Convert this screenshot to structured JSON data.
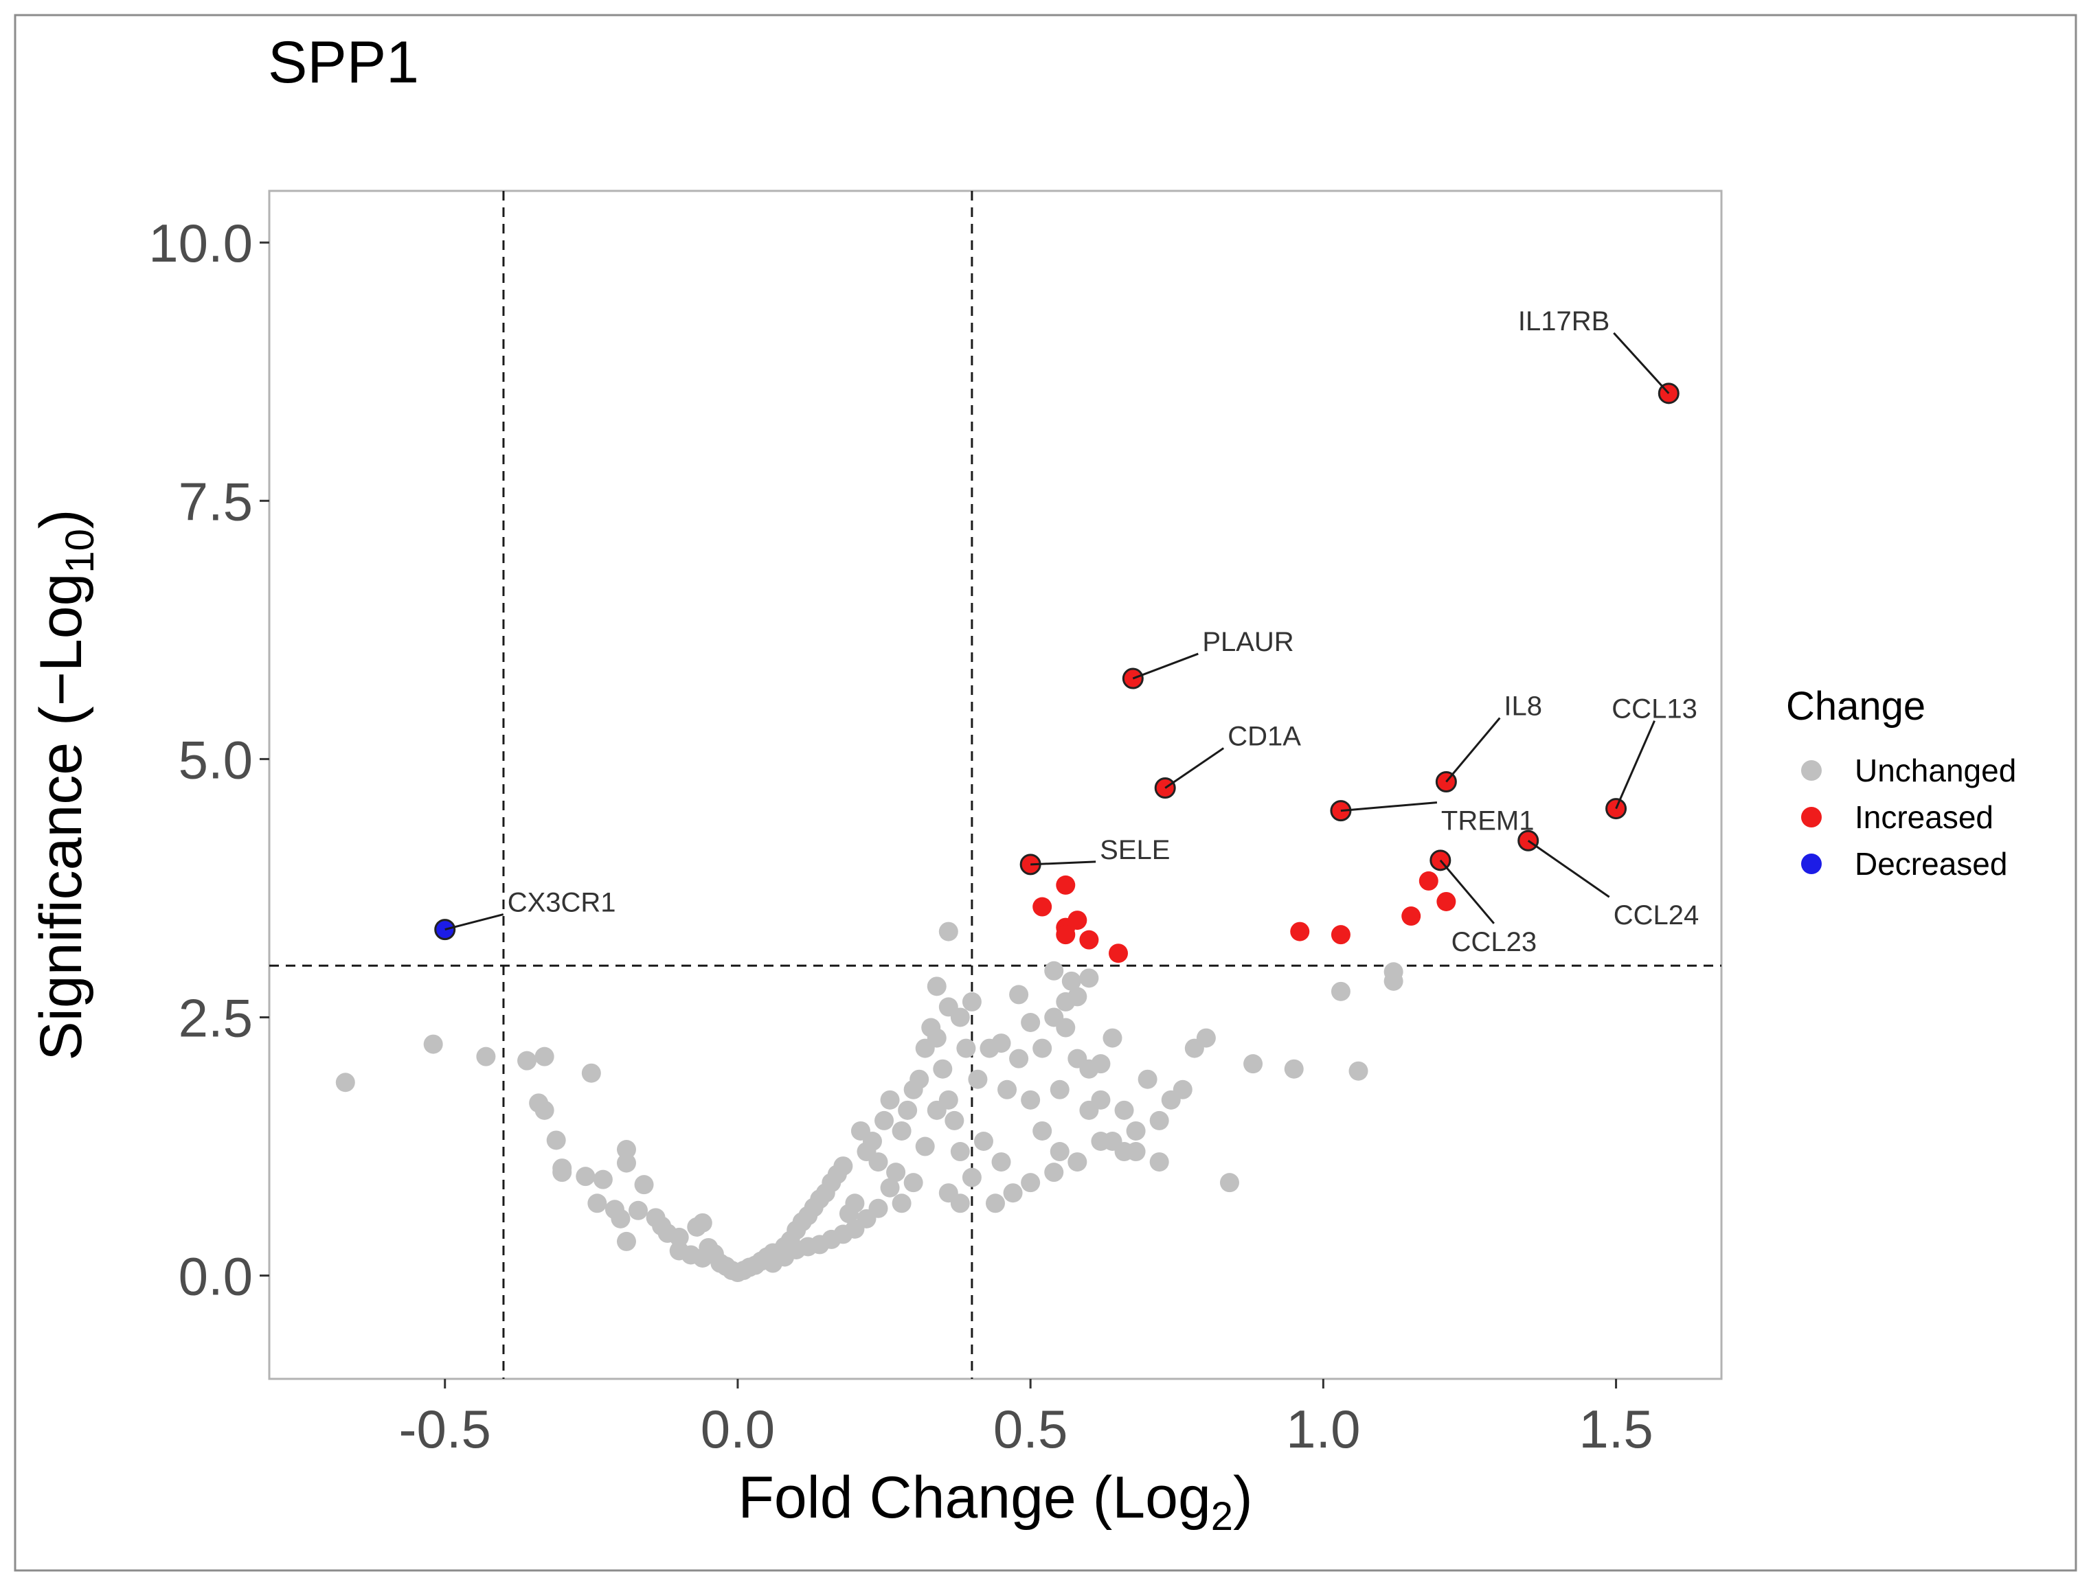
{
  "chart_data": {
    "type": "scatter",
    "title": "SPP1",
    "xlabel": "Fold Change (Log",
    "xlabel_sub": "2",
    "xlabel_end": ")",
    "ylabel": "Significance (−Log",
    "ylabel_sub": "10",
    "ylabel_end": ")",
    "xlim": [
      -0.8,
      1.68
    ],
    "ylim": [
      -1.0,
      10.5
    ],
    "x_ticks": [
      {
        "value": -0.5,
        "label": "-0.5"
      },
      {
        "value": 0.0,
        "label": "0.0"
      },
      {
        "value": 0.5,
        "label": "0.5"
      },
      {
        "value": 1.0,
        "label": "1.0"
      },
      {
        "value": 1.5,
        "label": "1.5"
      }
    ],
    "y_ticks": [
      {
        "value": 0.0,
        "label": "0.0"
      },
      {
        "value": 2.5,
        "label": "2.5"
      },
      {
        "value": 5.0,
        "label": "5.0"
      },
      {
        "value": 7.5,
        "label": "7.5"
      },
      {
        "value": 10.0,
        "label": "10.0"
      }
    ],
    "grid": false,
    "thresholds": {
      "fold_change_low": -0.4,
      "fold_change_high": 0.4,
      "significance": 3.0
    },
    "legend": {
      "title": "Change",
      "position": "right",
      "entries": [
        {
          "label": "Unchanged",
          "color": "#c0c0c0"
        },
        {
          "label": "Increased",
          "color": "#ef1c1c"
        },
        {
          "label": "Decreased",
          "color": "#1c1ce6"
        }
      ]
    },
    "colors": {
      "unchanged": "#c0c0c0",
      "increased": "#ef1c1c",
      "decreased": "#1c1ce6",
      "outline": "#222222"
    },
    "series": [
      {
        "name": "Unchanged",
        "points": [
          [
            -0.67,
            1.87
          ],
          [
            -0.52,
            2.24
          ],
          [
            -0.43,
            2.12
          ],
          [
            -0.36,
            2.08
          ],
          [
            -0.33,
            2.12
          ],
          [
            -0.25,
            1.96
          ],
          [
            -0.33,
            1.6
          ],
          [
            -0.34,
            1.67
          ],
          [
            -0.31,
            1.31
          ],
          [
            -0.3,
            1.04
          ],
          [
            -0.3,
            1.0
          ],
          [
            -0.26,
            0.96
          ],
          [
            -0.19,
            1.22
          ],
          [
            -0.19,
            1.09
          ],
          [
            -0.16,
            0.88
          ],
          [
            -0.23,
            0.93
          ],
          [
            -0.24,
            0.7
          ],
          [
            -0.21,
            0.64
          ],
          [
            -0.2,
            0.55
          ],
          [
            -0.17,
            0.63
          ],
          [
            -0.14,
            0.56
          ],
          [
            -0.13,
            0.48
          ],
          [
            -0.12,
            0.41
          ],
          [
            -0.19,
            0.33
          ],
          [
            -0.1,
            0.37
          ],
          [
            -0.07,
            0.47
          ],
          [
            -0.06,
            0.51
          ],
          [
            -0.1,
            0.24
          ],
          [
            -0.08,
            0.2
          ],
          [
            -0.06,
            0.17
          ],
          [
            -0.05,
            0.27
          ],
          [
            -0.04,
            0.21
          ],
          [
            -0.03,
            0.12
          ],
          [
            -0.02,
            0.09
          ],
          [
            -0.01,
            0.05
          ],
          [
            0.0,
            0.03
          ],
          [
            0.01,
            0.05
          ],
          [
            0.02,
            0.08
          ],
          [
            0.03,
            0.1
          ],
          [
            0.04,
            0.14
          ],
          [
            0.05,
            0.18
          ],
          [
            0.06,
            0.12
          ],
          [
            0.07,
            0.22
          ],
          [
            0.08,
            0.28
          ],
          [
            0.09,
            0.34
          ],
          [
            0.1,
            0.44
          ],
          [
            0.11,
            0.52
          ],
          [
            0.12,
            0.58
          ],
          [
            0.13,
            0.66
          ],
          [
            0.14,
            0.74
          ],
          [
            0.15,
            0.8
          ],
          [
            0.16,
            0.9
          ],
          [
            0.17,
            0.98
          ],
          [
            0.18,
            1.06
          ],
          [
            0.19,
            0.6
          ],
          [
            0.2,
            0.7
          ],
          [
            0.21,
            1.4
          ],
          [
            0.22,
            1.2
          ],
          [
            0.23,
            1.3
          ],
          [
            0.24,
            1.1
          ],
          [
            0.25,
            1.5
          ],
          [
            0.26,
            1.7
          ],
          [
            0.27,
            1.0
          ],
          [
            0.28,
            1.4
          ],
          [
            0.29,
            1.6
          ],
          [
            0.3,
            1.8
          ],
          [
            0.31,
            1.9
          ],
          [
            0.32,
            2.2
          ],
          [
            0.33,
            2.4
          ],
          [
            0.34,
            2.3
          ],
          [
            0.35,
            2.0
          ],
          [
            0.36,
            1.7
          ],
          [
            0.37,
            1.5
          ],
          [
            0.38,
            1.2
          ],
          [
            0.39,
            2.2
          ],
          [
            0.4,
            2.65
          ],
          [
            0.41,
            1.9
          ],
          [
            0.43,
            2.2
          ],
          [
            0.45,
            2.25
          ],
          [
            0.46,
            1.8
          ],
          [
            0.48,
            2.1
          ],
          [
            0.5,
            1.7
          ],
          [
            0.52,
            2.2
          ],
          [
            0.54,
            2.5
          ],
          [
            0.56,
            2.4
          ],
          [
            0.58,
            2.1
          ],
          [
            0.6,
            2.0
          ],
          [
            0.62,
            1.7
          ],
          [
            0.64,
            1.3
          ],
          [
            0.66,
            1.6
          ],
          [
            0.68,
            1.4
          ],
          [
            0.7,
            1.9
          ],
          [
            0.72,
            1.5
          ],
          [
            0.74,
            1.7
          ],
          [
            0.78,
            2.2
          ],
          [
            0.8,
            2.3
          ],
          [
            0.84,
            0.9
          ],
          [
            0.88,
            2.05
          ],
          [
            0.95,
            2.0
          ],
          [
            1.03,
            2.75
          ],
          [
            1.06,
            1.98
          ],
          [
            1.12,
            2.85
          ],
          [
            1.12,
            2.94
          ],
          [
            0.36,
            3.33
          ],
          [
            0.54,
            2.95
          ],
          [
            0.57,
            2.85
          ],
          [
            0.6,
            2.88
          ],
          [
            0.56,
            2.65
          ],
          [
            0.58,
            2.7
          ],
          [
            0.48,
            2.72
          ],
          [
            0.52,
            1.4
          ],
          [
            0.55,
            1.2
          ],
          [
            0.45,
            1.1
          ],
          [
            0.44,
            0.7
          ],
          [
            0.47,
            0.8
          ],
          [
            0.5,
            0.9
          ],
          [
            0.54,
            1.0
          ],
          [
            0.58,
            1.1
          ],
          [
            0.62,
            1.3
          ],
          [
            0.66,
            1.2
          ],
          [
            0.32,
            1.25
          ],
          [
            0.3,
            0.9
          ],
          [
            0.28,
            0.7
          ],
          [
            0.26,
            0.85
          ],
          [
            0.24,
            0.65
          ],
          [
            0.22,
            0.55
          ],
          [
            0.2,
            0.45
          ],
          [
            0.18,
            0.4
          ],
          [
            0.16,
            0.35
          ],
          [
            0.14,
            0.3
          ],
          [
            0.12,
            0.28
          ],
          [
            0.1,
            0.25
          ],
          [
            0.08,
            0.18
          ],
          [
            0.06,
            0.22
          ],
          [
            0.36,
            0.8
          ],
          [
            0.38,
            0.7
          ],
          [
            0.4,
            0.95
          ],
          [
            0.42,
            1.3
          ],
          [
            0.34,
            1.6
          ],
          [
            0.36,
            2.6
          ],
          [
            0.34,
            2.8
          ],
          [
            0.38,
            2.5
          ],
          [
            0.55,
            1.8
          ],
          [
            0.6,
            1.6
          ],
          [
            0.68,
            1.2
          ],
          [
            0.72,
            1.1
          ],
          [
            0.76,
            1.8
          ],
          [
            0.64,
            2.3
          ],
          [
            0.62,
            2.05
          ],
          [
            0.5,
            2.45
          ]
        ]
      },
      {
        "name": "Increased",
        "points": [
          [
            1.59,
            8.54
          ],
          [
            0.675,
            5.78
          ],
          [
            0.73,
            4.72
          ],
          [
            1.21,
            4.78
          ],
          [
            1.5,
            4.52
          ],
          [
            1.03,
            4.5
          ],
          [
            1.35,
            4.21
          ],
          [
            0.5,
            3.98
          ],
          [
            1.2,
            4.02
          ],
          [
            0.56,
            3.78
          ],
          [
            1.18,
            3.82
          ],
          [
            1.21,
            3.62
          ],
          [
            0.52,
            3.57
          ],
          [
            1.15,
            3.48
          ],
          [
            0.58,
            3.44
          ],
          [
            0.56,
            3.37
          ],
          [
            0.96,
            3.33
          ],
          [
            1.03,
            3.3
          ],
          [
            0.56,
            3.3
          ],
          [
            0.6,
            3.25
          ],
          [
            0.65,
            3.12
          ]
        ]
      },
      {
        "name": "Decreased",
        "points": [
          [
            -0.5,
            3.35
          ]
        ]
      }
    ],
    "annotations": [
      {
        "gene": "IL17RB",
        "x": 1.59,
        "y": 8.54
      },
      {
        "gene": "PLAUR",
        "x": 0.675,
        "y": 5.78
      },
      {
        "gene": "CD1A",
        "x": 0.73,
        "y": 4.72
      },
      {
        "gene": "IL8",
        "x": 1.21,
        "y": 4.78
      },
      {
        "gene": "CCL13",
        "x": 1.5,
        "y": 4.52
      },
      {
        "gene": "TREM1",
        "x": 1.03,
        "y": 4.5
      },
      {
        "gene": "CCL24",
        "x": 1.35,
        "y": 4.21
      },
      {
        "gene": "SELE",
        "x": 0.5,
        "y": 3.98
      },
      {
        "gene": "CCL23",
        "x": 1.2,
        "y": 4.02
      },
      {
        "gene": "CX3CR1",
        "x": -0.5,
        "y": 3.35
      }
    ]
  }
}
